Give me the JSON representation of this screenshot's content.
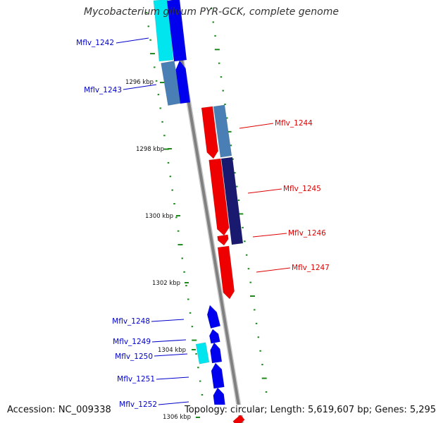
{
  "title": "Mycobacterium gilvum PYR-GCK, complete genome",
  "footer": {
    "accession": "Accession: NC_009338",
    "topology": "Topology: circular; Length: 5,619,607 bp; Genes: 5,295"
  },
  "colors": {
    "backbone": "#808080",
    "gc_ticks": "#1e8a1e",
    "forward_gene": "#0000ee",
    "forward_steel": "#4a7fb5",
    "forward_cyan": "#00e5ee",
    "reverse_gene": "#ee0000",
    "reverse_steel": "#4a7fb5",
    "reverse_navy": "#191970",
    "forward_label": "#0000cc",
    "reverse_label": "#dd0000"
  },
  "ruler": [
    {
      "label": "1296 kbp"
    },
    {
      "label": "1298 kbp"
    },
    {
      "label": "1300 kbp"
    },
    {
      "label": "1302 kbp"
    },
    {
      "label": "1304 kbp"
    },
    {
      "label": "1306 kbp"
    }
  ],
  "genes": [
    {
      "label": "Mflv_1242",
      "strand": "forward"
    },
    {
      "label": "Mflv_1243",
      "strand": "forward"
    },
    {
      "label": "Mflv_1244",
      "strand": "reverse"
    },
    {
      "label": "Mflv_1245",
      "strand": "reverse"
    },
    {
      "label": "Mflv_1246",
      "strand": "reverse"
    },
    {
      "label": "Mflv_1247",
      "strand": "reverse"
    },
    {
      "label": "Mflv_1248",
      "strand": "forward"
    },
    {
      "label": "Mflv_1249",
      "strand": "forward"
    },
    {
      "label": "Mflv_1250",
      "strand": "forward"
    },
    {
      "label": "Mflv_1251",
      "strand": "forward"
    },
    {
      "label": "Mflv_1252",
      "strand": "forward"
    }
  ]
}
